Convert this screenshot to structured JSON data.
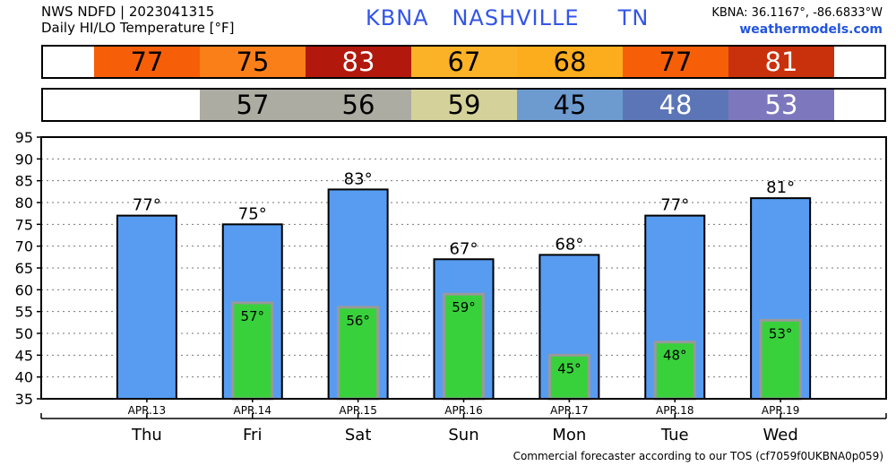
{
  "header": {
    "line1": "NWS NDFD | 2023041315",
    "line2": "Daily HI/LO Temperature [°F]",
    "station_title": "KBNA   NASHVILLE     TN",
    "coords": "KBNA: 36.1167°, -86.6833°W",
    "site": "weathermodels.com"
  },
  "high_strip": [
    {
      "day": "Thu",
      "value": "77",
      "color": "#f65f08"
    },
    {
      "day": "Fri",
      "value": "75",
      "color": "#fb7f18"
    },
    {
      "day": "Sat",
      "value": "83",
      "color": "#b2190c"
    },
    {
      "day": "Sun",
      "value": "67",
      "color": "#fbb226"
    },
    {
      "day": "Mon",
      "value": "68",
      "color": "#fbad1e"
    },
    {
      "day": "Tue",
      "value": "77",
      "color": "#f65f08"
    },
    {
      "day": "Wed",
      "value": "81",
      "color": "#c9310c"
    }
  ],
  "low_strip": [
    {
      "day": "Thu",
      "value": "",
      "color": "#ffffff"
    },
    {
      "day": "Fri",
      "value": "57",
      "color": "#acaca3"
    },
    {
      "day": "Sat",
      "value": "56",
      "color": "#acaca3"
    },
    {
      "day": "Sun",
      "value": "59",
      "color": "#d4d19a"
    },
    {
      "day": "Mon",
      "value": "45",
      "color": "#6d9bd0"
    },
    {
      "day": "Tue",
      "value": "48",
      "color": "#5c75b6"
    },
    {
      "day": "Wed",
      "value": "53",
      "color": "#7d77bd"
    }
  ],
  "footer": "Commercial forecaster according to our TOS (cf7059f0UKBNA0p059)",
  "chart_data": {
    "type": "bar",
    "categories": [
      "Thu",
      "Fri",
      "Sat",
      "Sun",
      "Mon",
      "Tue",
      "Wed"
    ],
    "dates": [
      "APR.13",
      "APR.14",
      "APR.15",
      "APR.16",
      "APR.17",
      "APR.18",
      "APR.19"
    ],
    "series": [
      {
        "name": "HI",
        "values": [
          77,
          75,
          83,
          67,
          68,
          77,
          81
        ],
        "labels": [
          "77°",
          "75°",
          "83°",
          "67°",
          "68°",
          "77°",
          "81°"
        ]
      },
      {
        "name": "LO",
        "values": [
          null,
          57,
          56,
          59,
          45,
          48,
          53
        ],
        "labels": [
          "",
          "57°",
          "56°",
          "59°",
          "45°",
          "48°",
          "53°"
        ]
      }
    ],
    "ylim": [
      35,
      95
    ],
    "yticks": [
      35,
      40,
      45,
      50,
      55,
      60,
      65,
      70,
      75,
      80,
      85,
      90,
      95
    ],
    "grid": true,
    "colors": {
      "high": "#579cf0",
      "low": "#38d13c",
      "low_border": "#999999"
    }
  }
}
